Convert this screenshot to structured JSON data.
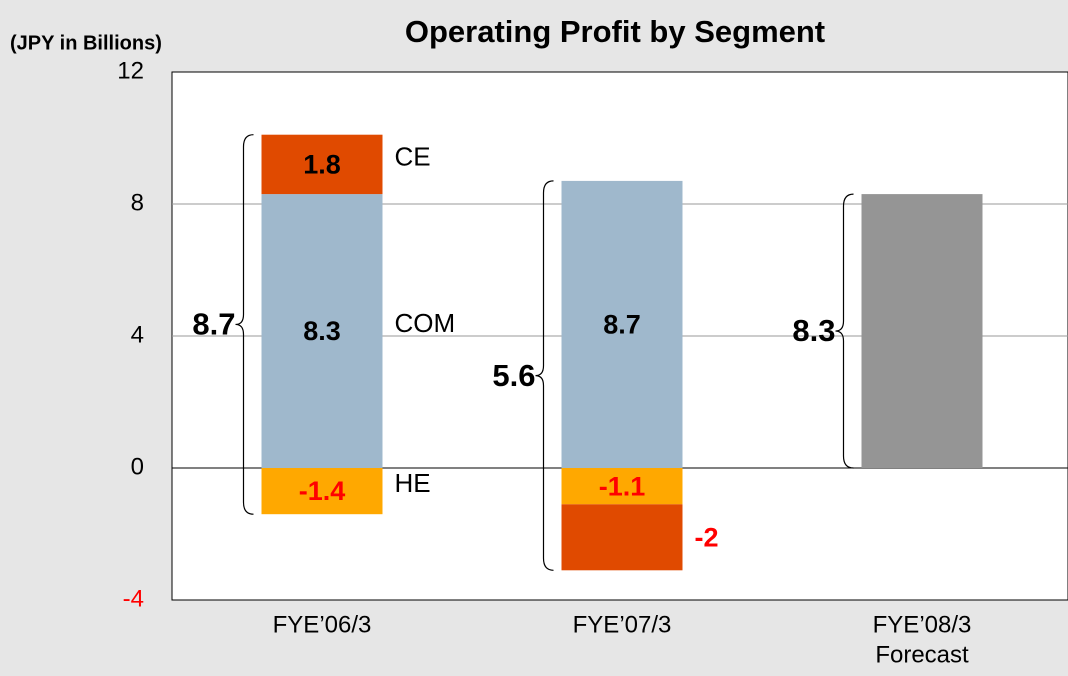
{
  "chart_data": {
    "type": "stacked_bar",
    "title": "Operating Profit by Segment",
    "unit_label": "(JPY in Billions)",
    "categories": [
      "FYE’06/3",
      "FYE’07/3",
      "FYE’08/3"
    ],
    "category_sublabels": [
      null,
      null,
      "Forecast"
    ],
    "series": [
      {
        "name": "HE",
        "color": "#ffa800",
        "values": [
          -1.4,
          -1.1,
          null
        ]
      },
      {
        "name": "COM",
        "color": "#9fb8cc",
        "values": [
          8.3,
          8.7,
          null
        ]
      },
      {
        "name": "CE",
        "color": "#e04a00",
        "values": [
          1.8,
          -2.0,
          null
        ]
      },
      {
        "color": "#959595",
        "values": [
          null,
          null,
          8.3
        ]
      }
    ],
    "totals": [
      8.7,
      5.6,
      8.3
    ],
    "negative_color": "#ff0000",
    "ylim": [
      -4,
      12
    ],
    "yticks": [
      -4,
      0,
      4,
      8,
      12
    ],
    "grid": true
  }
}
